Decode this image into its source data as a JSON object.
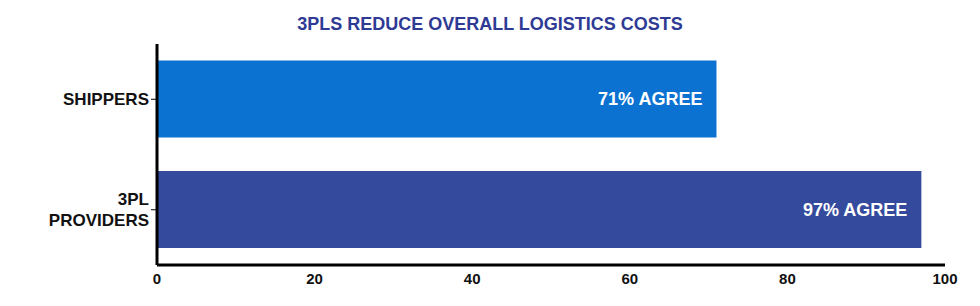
{
  "chart_data": {
    "type": "bar",
    "title": "3PLS REDUCE OVERALL LOGISTICS COSTS",
    "orientation": "horizontal",
    "categories": [
      "SHIPPERS",
      "3PL PROVIDERS"
    ],
    "values": [
      71,
      97
    ],
    "value_labels": [
      "71% AGREE",
      "97% AGREE"
    ],
    "data_labels": true,
    "colors": [
      "#0b72d2",
      "#344a9c"
    ],
    "xlim": [
      0,
      100
    ],
    "xticks": [
      0,
      20,
      40,
      60,
      80,
      100
    ],
    "grid": false
  }
}
